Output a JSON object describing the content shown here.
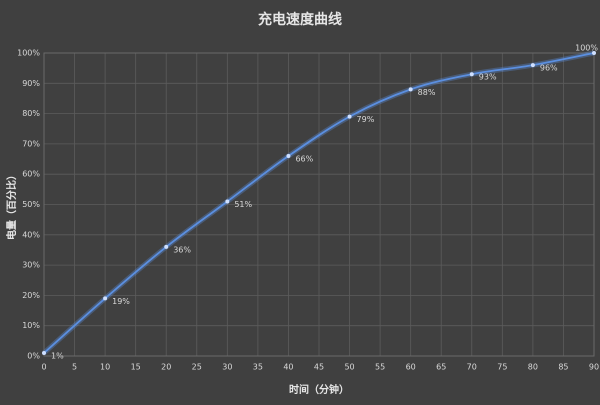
{
  "chart_data": {
    "type": "line",
    "title": "充电速度曲线",
    "x_label": "时间（分钟）",
    "y_label": "电量（百分比）",
    "x": [
      0,
      10,
      20,
      30,
      40,
      50,
      60,
      70,
      80,
      90
    ],
    "series": [
      {
        "name": "电量",
        "color": "#5b8fe0",
        "values": [
          1,
          19,
          36,
          51,
          66,
          79,
          88,
          93,
          96,
          100
        ],
        "value_labels": [
          "1%",
          "19%",
          "36%",
          "51%",
          "66%",
          "79%",
          "88%",
          "93%",
          "96%",
          "100%"
        ]
      }
    ],
    "xlim": [
      0,
      90
    ],
    "xticks": [
      0,
      5,
      10,
      15,
      20,
      25,
      30,
      35,
      40,
      45,
      50,
      55,
      60,
      65,
      70,
      75,
      80,
      85,
      90
    ],
    "ylim": [
      0,
      100
    ],
    "yticks": [
      {
        "value": 0,
        "label": "0%"
      },
      {
        "value": 10,
        "label": "10%"
      },
      {
        "value": 20,
        "label": "20%"
      },
      {
        "value": 30,
        "label": "30%"
      },
      {
        "value": 40,
        "label": "40%"
      },
      {
        "value": 50,
        "label": "50%"
      },
      {
        "value": 60,
        "label": "60%"
      },
      {
        "value": 70,
        "label": "70%"
      },
      {
        "value": 80,
        "label": "80%"
      },
      {
        "value": 90,
        "label": "90%"
      },
      {
        "value": 100,
        "label": "100%"
      }
    ],
    "grid": true
  }
}
